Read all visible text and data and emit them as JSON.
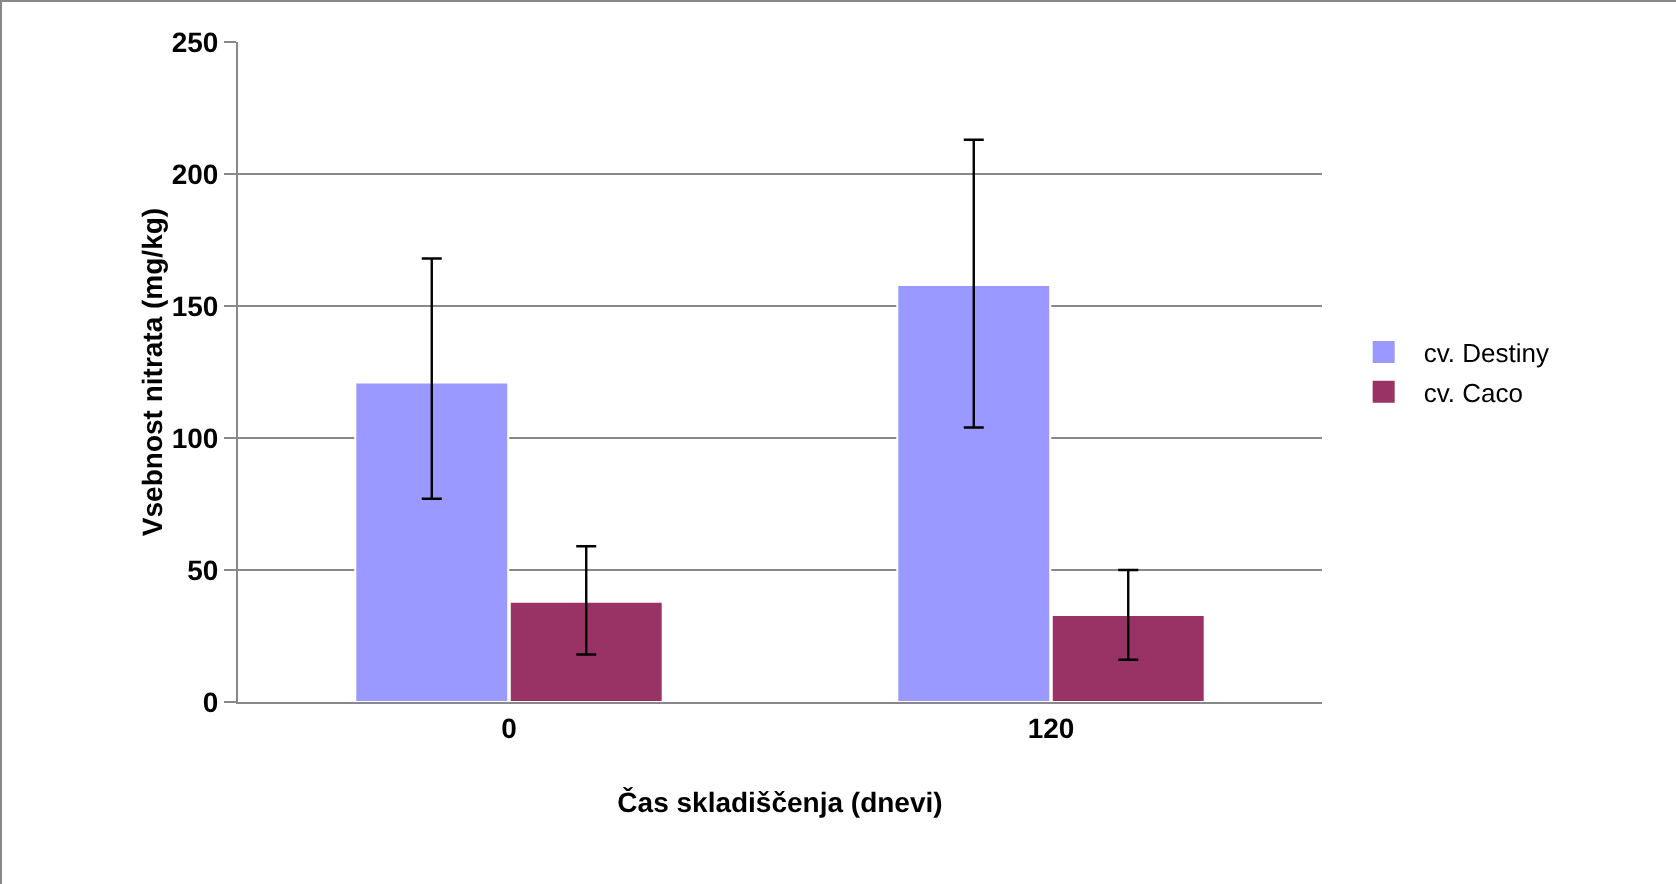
{
  "chart_data": {
    "type": "bar",
    "xlabel": "Čas skladiščenja (dnevi)",
    "ylabel": "Vsebnost nitrata (mg/kg)",
    "categories": [
      "0",
      "120"
    ],
    "series": [
      {
        "name": "cv. Destiny",
        "color": "#9999ff",
        "values": [
          121,
          158
        ],
        "errors": [
          [
            77,
            168
          ],
          [
            104,
            213
          ]
        ]
      },
      {
        "name": "cv. Caco",
        "color": "#993366",
        "values": [
          38,
          33
        ],
        "errors": [
          [
            18,
            59
          ],
          [
            16,
            50
          ]
        ]
      }
    ],
    "ylim": [
      0,
      250
    ],
    "yticks": [
      0,
      50,
      100,
      150,
      200,
      250
    ],
    "grid": "y",
    "legend": "right"
  }
}
